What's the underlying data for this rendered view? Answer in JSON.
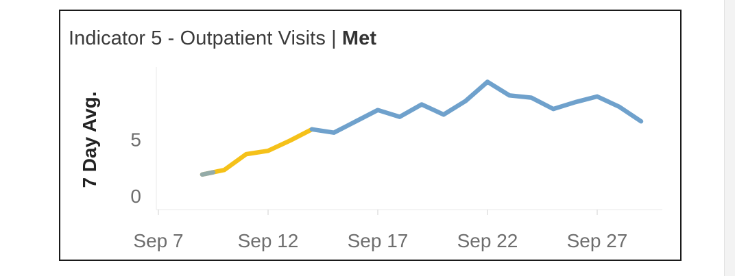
{
  "title": {
    "main": "Indicator 5 - Outpatient Visits | ",
    "status": "Met"
  },
  "chart_data": {
    "type": "line",
    "title": "Indicator 5 - Outpatient Visits | Met",
    "xlabel": "",
    "ylabel": "7 Day Avg.",
    "x_ticks": [
      "Sep 7",
      "Sep 12",
      "Sep 17",
      "Sep 22",
      "Sep 27"
    ],
    "y_ticks": [
      "0",
      "5"
    ],
    "ylim": [
      -1.2,
      11.4
    ],
    "series": [
      {
        "color": "#F5C119",
        "x": [
          "Sep 9",
          "Sep 10",
          "Sep 11",
          "Sep 12",
          "Sep 13",
          "Sep 14"
        ],
        "values": [
          1.9,
          2.3,
          3.7,
          4.0,
          4.9,
          5.9
        ]
      },
      {
        "color": "#6FA1CC",
        "x": [
          "Sep 14",
          "Sep 15",
          "Sep 16",
          "Sep 17",
          "Sep 18",
          "Sep 19",
          "Sep 20",
          "Sep 21",
          "Sep 22",
          "Sep 23",
          "Sep 24",
          "Sep 25",
          "Sep 26",
          "Sep 27",
          "Sep 28",
          "Sep 29"
        ],
        "values": [
          5.9,
          5.6,
          6.6,
          7.6,
          7.0,
          8.1,
          7.2,
          8.4,
          10.1,
          8.9,
          8.7,
          7.7,
          8.3,
          8.8,
          7.9,
          6.6
        ]
      }
    ],
    "grid": false
  }
}
